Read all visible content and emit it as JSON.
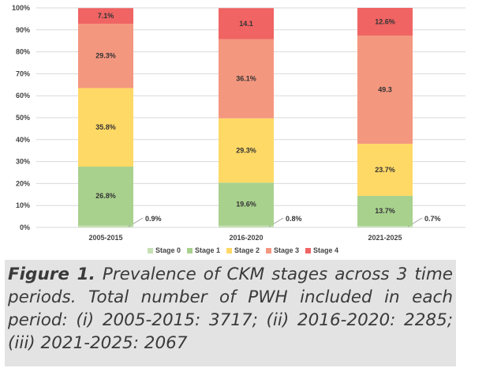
{
  "chart_data": {
    "type": "stacked-bar",
    "categories": [
      "2005-2015",
      "2016-2020",
      "2021-2025"
    ],
    "series": [
      {
        "name": "Stage 0",
        "color": "#c6e0b4",
        "values": [
          0.9,
          0.8,
          0.7
        ],
        "labels": [
          "0.9%",
          "0.8%",
          "0.7%"
        ]
      },
      {
        "name": "Stage 1",
        "color": "#a9d18e",
        "values": [
          26.8,
          19.6,
          13.7
        ],
        "labels": [
          "26.8%",
          "19.6%",
          "13.7%"
        ]
      },
      {
        "name": "Stage 2",
        "color": "#ffd966",
        "values": [
          35.8,
          29.3,
          23.7
        ],
        "labels": [
          "35.8%",
          "29.3%",
          "23.7%"
        ]
      },
      {
        "name": "Stage 3",
        "color": "#f4977f",
        "values": [
          29.3,
          36.1,
          49.3
        ],
        "labels": [
          "29.3%",
          "36.1%",
          "49.3"
        ]
      },
      {
        "name": "Stage 4",
        "color": "#f06464",
        "values": [
          7.1,
          14.1,
          12.6
        ],
        "labels": [
          "7.1%",
          "14.1",
          "12.6%"
        ]
      }
    ],
    "ylim": [
      0,
      100
    ],
    "yticks": [
      "0%",
      "10%",
      "20%",
      "30%",
      "40%",
      "50%",
      "60%",
      "70%",
      "80%",
      "90%",
      "100%"
    ],
    "grid": true,
    "legend_position": "bottom"
  },
  "caption": {
    "label": "Figure 1.",
    "text": "Prevalence of CKM stages across 3 time periods. Total number of PWH included in each period: (i) 2005-2015: 3717; (ii) 2016-2020: 2285; (iii) 2021-2025: 2067"
  }
}
